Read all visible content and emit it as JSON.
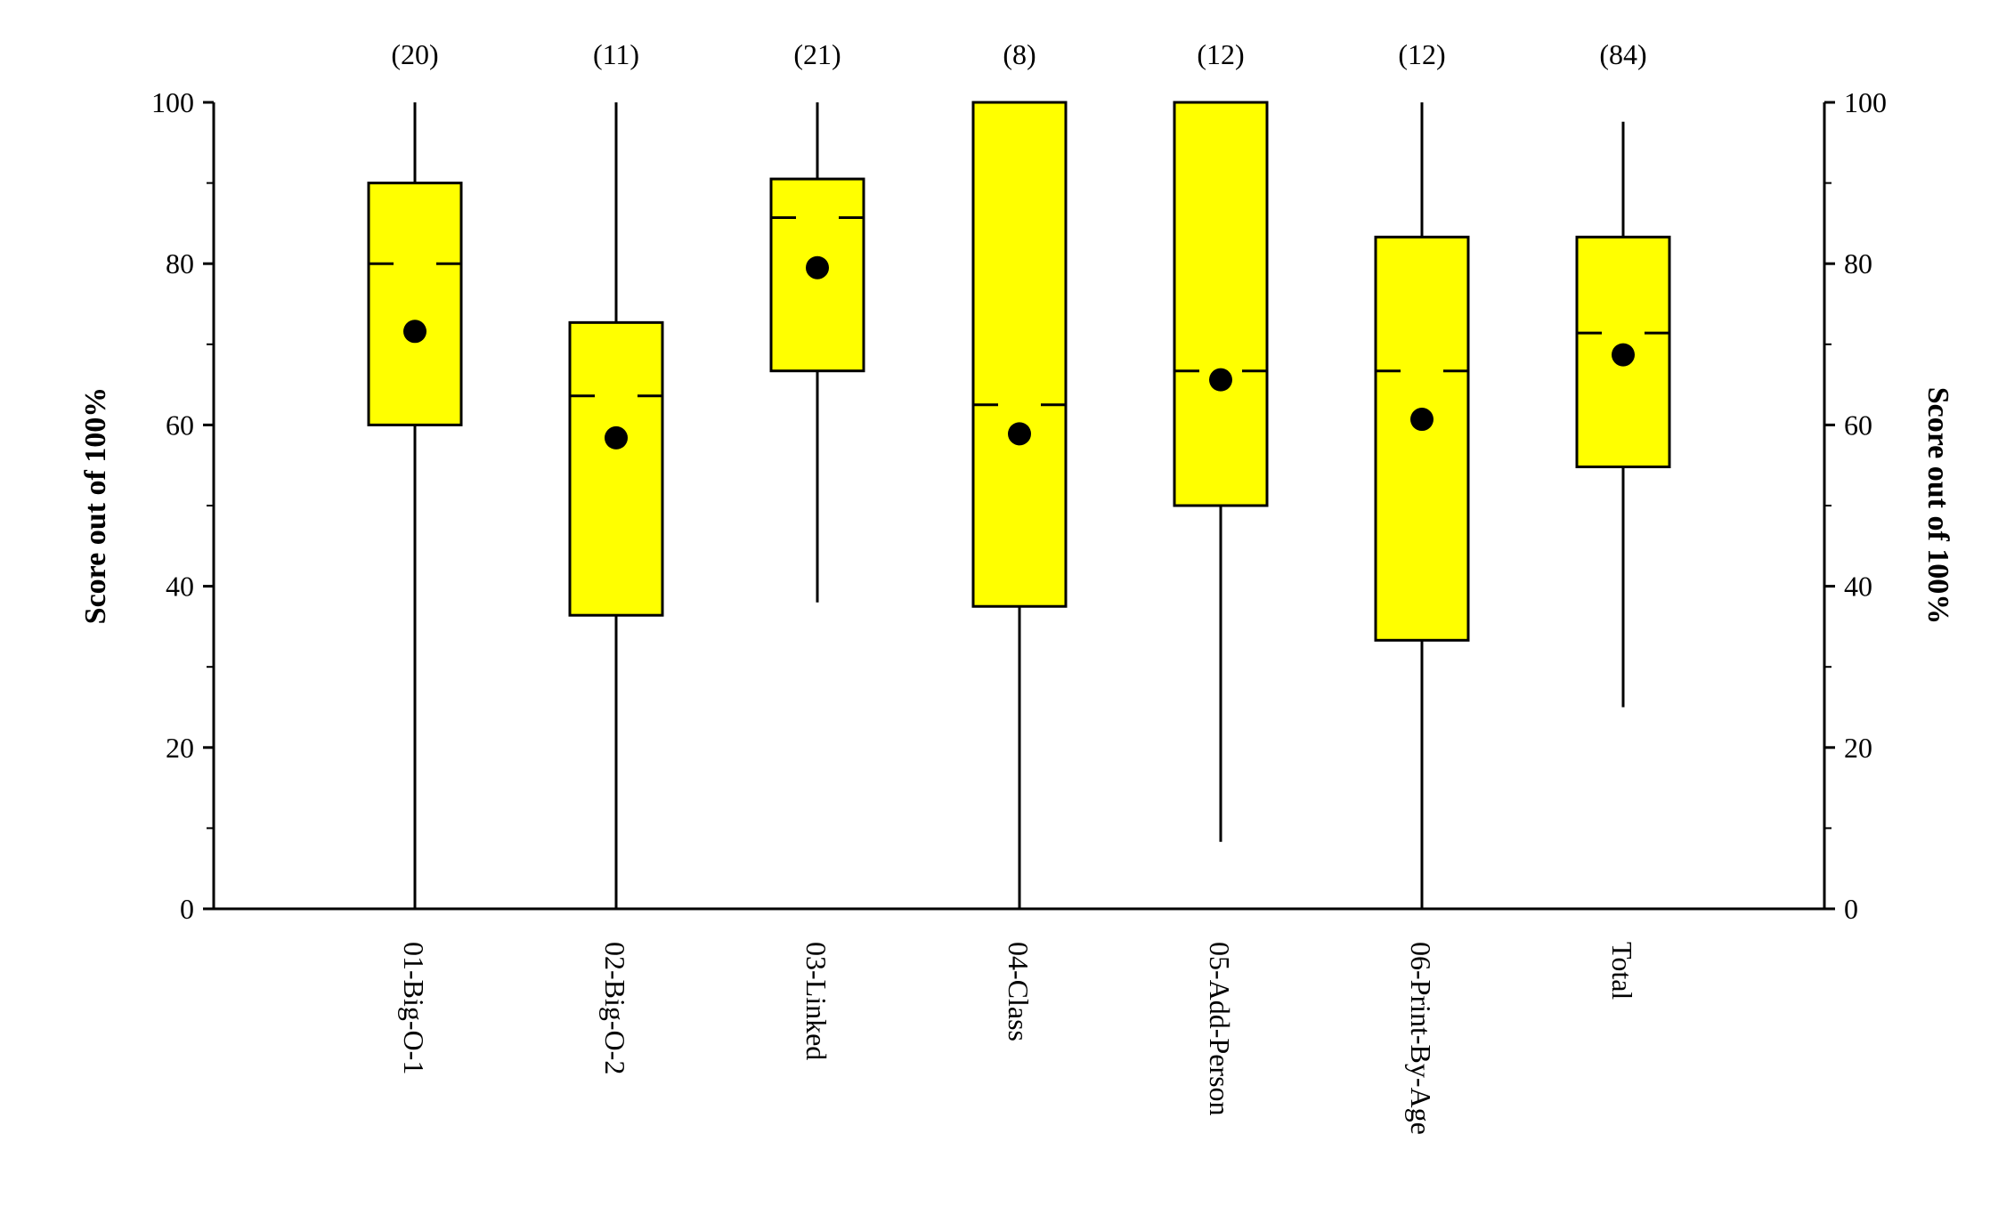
{
  "chart_data": {
    "type": "box",
    "title": "",
    "xlabel": "",
    "ylabel": "Score out of 100%",
    "ylabel_right": "Score out of 100%",
    "ylim": [
      0,
      100
    ],
    "yticks": [
      0,
      20,
      40,
      60,
      80,
      100
    ],
    "grid": false,
    "box_color": "#ffff00",
    "categories": [
      "01-Big-O-1",
      "02-Big-O-2",
      "03-Linked",
      "04-Class",
      "05-Add-Person",
      "06-Print-By-Age",
      "Total"
    ],
    "counts": [
      "(20)",
      "(11)",
      "(21)",
      "(8)",
      "(12)",
      "(12)",
      "(84)"
    ],
    "series": [
      {
        "min": 0,
        "q1": 60,
        "median": 80,
        "q3": 90,
        "max": 100,
        "mean": 71.6
      },
      {
        "min": 0,
        "q1": 36.4,
        "median": 63.6,
        "q3": 72.7,
        "max": 100,
        "mean": 58.4
      },
      {
        "min": 38,
        "q1": 66.7,
        "median": 85.7,
        "q3": 90.5,
        "max": 100,
        "mean": 79.5
      },
      {
        "min": 0,
        "q1": 37.5,
        "median": 62.5,
        "q3": 100,
        "max": 100,
        "mean": 58.9
      },
      {
        "min": 8.3,
        "q1": 50,
        "median": 66.7,
        "q3": 100,
        "max": 100,
        "mean": 65.6
      },
      {
        "min": 0,
        "q1": 33.3,
        "median": 66.7,
        "q3": 83.3,
        "max": 100,
        "mean": 60.7
      },
      {
        "min": 25,
        "q1": 54.8,
        "median": 71.4,
        "q3": 83.3,
        "max": 97.6,
        "mean": 68.7
      }
    ]
  }
}
